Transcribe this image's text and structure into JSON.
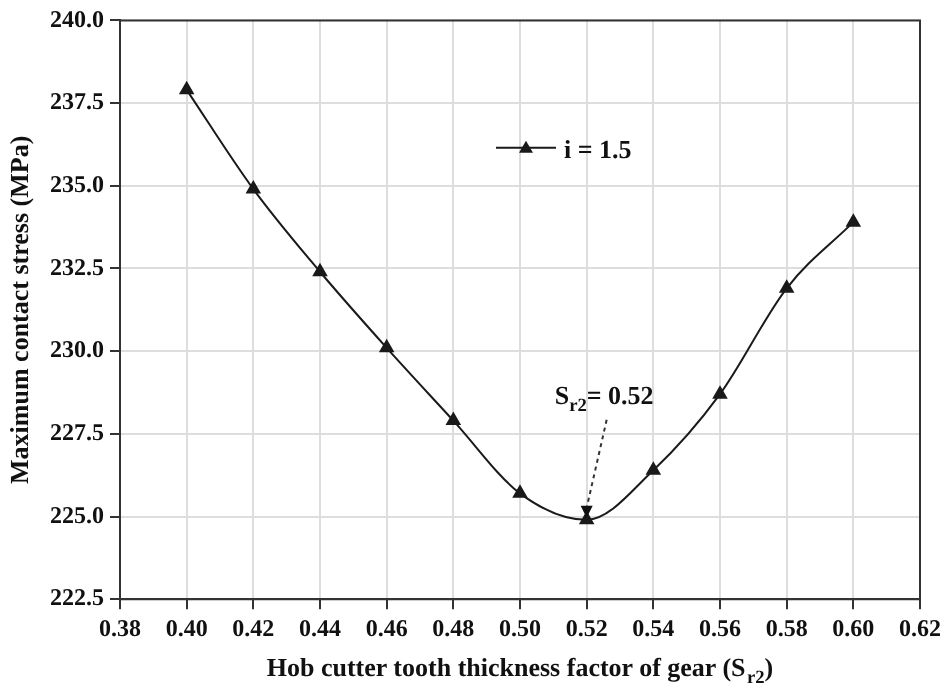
{
  "chart_data": {
    "type": "line",
    "xlabel": "Hob cutter tooth thickness factor of gear (S$_{r2}$)",
    "ylabel": "Maximum contact stress (MPa)",
    "x": [
      0.4,
      0.42,
      0.44,
      0.46,
      0.48,
      0.5,
      0.52,
      0.54,
      0.56,
      0.58,
      0.6
    ],
    "series": [
      {
        "name": "i = 1.5",
        "color": "#1a1a1a",
        "values": [
          237.9,
          234.9,
          232.4,
          230.1,
          227.9,
          225.7,
          224.9,
          226.4,
          228.7,
          231.9,
          233.9
        ]
      }
    ],
    "xlim": [
      0.38,
      0.62
    ],
    "xticks": [
      {
        "value": 0.38,
        "label": "0.38"
      },
      {
        "value": 0.4,
        "label": "0.40"
      },
      {
        "value": 0.42,
        "label": "0.42"
      },
      {
        "value": 0.44,
        "label": "0.44"
      },
      {
        "value": 0.46,
        "label": "0.46"
      },
      {
        "value": 0.48,
        "label": "0.48"
      },
      {
        "value": 0.5,
        "label": "0.50"
      },
      {
        "value": 0.52,
        "label": "0.52"
      },
      {
        "value": 0.54,
        "label": "0.54"
      },
      {
        "value": 0.56,
        "label": "0.56"
      },
      {
        "value": 0.58,
        "label": "0.58"
      },
      {
        "value": 0.6,
        "label": "0.60"
      },
      {
        "value": 0.62,
        "label": "0.62"
      }
    ],
    "ylim": [
      222.5,
      240.0
    ],
    "yticks": [
      {
        "value": 222.5,
        "label": "222.5"
      },
      {
        "value": 225.0,
        "label": "225.0"
      },
      {
        "value": 227.5,
        "label": "227.5"
      },
      {
        "value": 230.0,
        "label": "230.0"
      },
      {
        "value": 232.5,
        "label": "232.5"
      },
      {
        "value": 235.0,
        "label": "235.0"
      },
      {
        "value": 237.5,
        "label": "237.5"
      },
      {
        "value": 240.0,
        "label": "240.0"
      }
    ],
    "annotations": [
      {
        "text": "S$_{r2}$= 0.52",
        "x": 0.52,
        "y": 224.9
      }
    ],
    "grid": true,
    "legend": "top",
    "marker": "triangle",
    "line_style": "solid"
  }
}
